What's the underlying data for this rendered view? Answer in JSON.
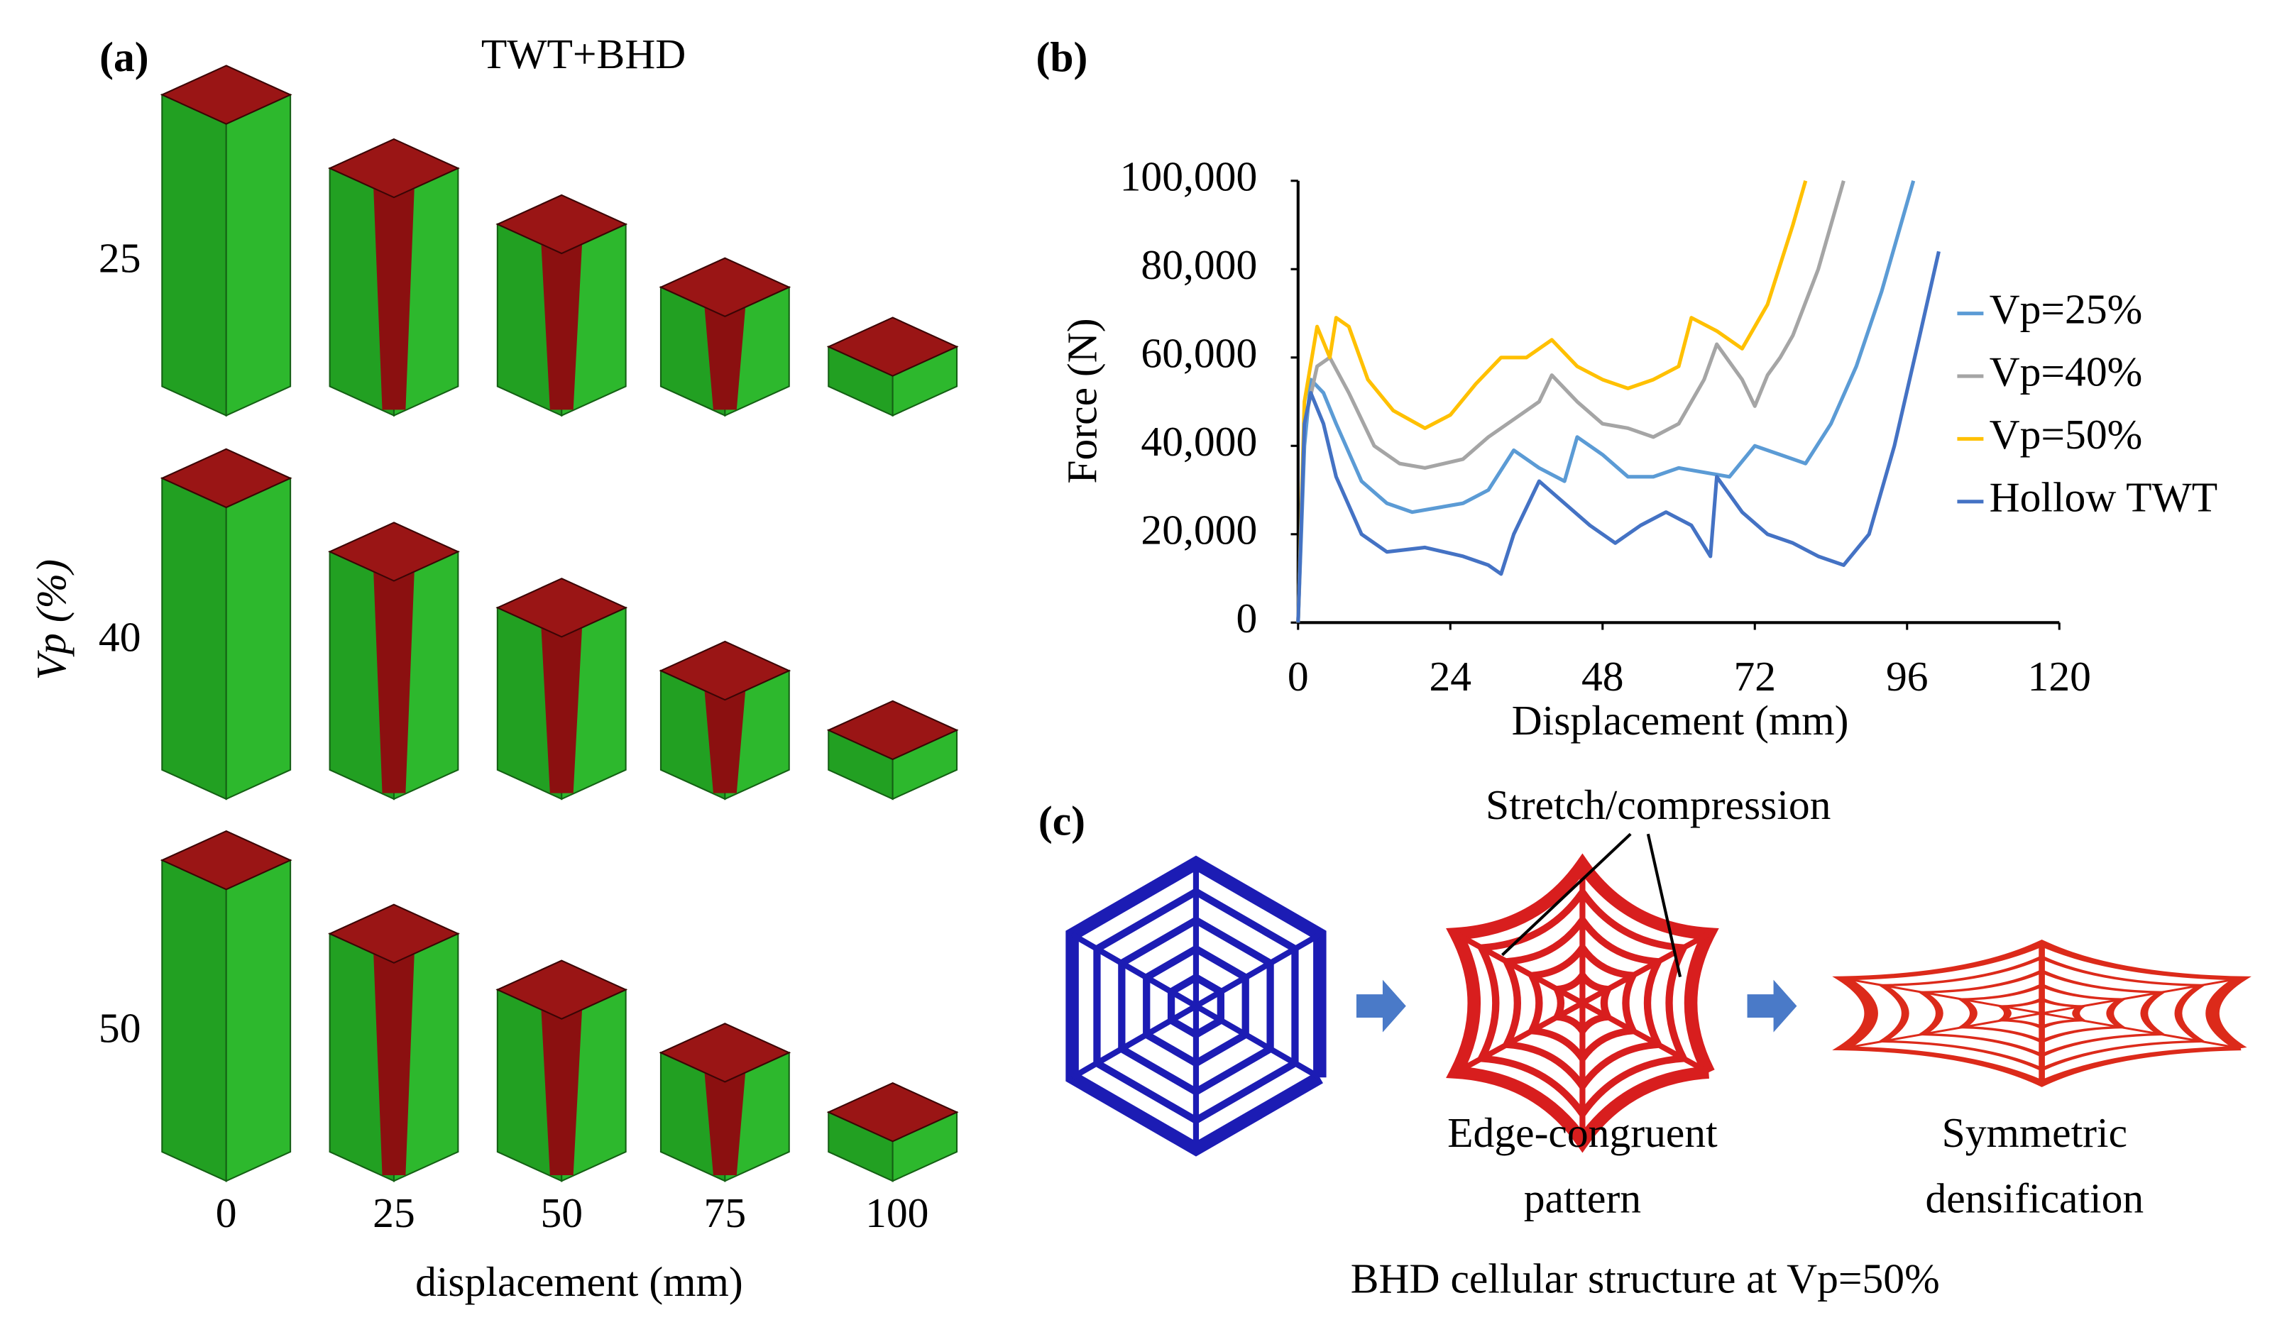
{
  "panel_a": {
    "label": "(a)",
    "title": "TWT+BHD",
    "row_axis_label": "Vp (%)",
    "rows": [
      "25",
      "40",
      "50"
    ],
    "columns": [
      "0",
      "25",
      "50",
      "75",
      "100"
    ],
    "column_axis_label": "displacement (mm)"
  },
  "chart_data": {
    "type": "line",
    "panel_label": "(b)",
    "x_label": "Displacement (mm)",
    "y_label": "Force (N)",
    "xlim": [
      0,
      120
    ],
    "xticks": [
      0,
      24,
      48,
      72,
      96,
      120
    ],
    "ylim": [
      0,
      100000
    ],
    "yticks": [
      0,
      {
        "value": 20000,
        "label": "20,000"
      },
      {
        "value": 40000,
        "label": "40,000"
      },
      {
        "value": 60000,
        "label": "60,000"
      },
      {
        "value": 80000,
        "label": "80,000"
      },
      {
        "value": 100000,
        "label": "100,000"
      }
    ],
    "grid": false,
    "legend": "right",
    "series": [
      {
        "name": "Vp=25%",
        "color": "#5b9bd5",
        "x": [
          0,
          1,
          2,
          4,
          6,
          10,
          14,
          18,
          22,
          26,
          30,
          34,
          38,
          42,
          44,
          48,
          52,
          56,
          60,
          64,
          68,
          72,
          76,
          80,
          84,
          88,
          92,
          95,
          97
        ],
        "values": [
          0,
          40000,
          55000,
          52000,
          45000,
          32000,
          27000,
          25000,
          26000,
          27000,
          30000,
          39000,
          35000,
          32000,
          42000,
          38000,
          33000,
          33000,
          35000,
          34000,
          33000,
          40000,
          38000,
          36000,
          45000,
          58000,
          75000,
          90000,
          100000
        ]
      },
      {
        "name": "Vp=40%",
        "color": "#a5a5a5",
        "x": [
          0,
          1,
          3,
          5,
          8,
          12,
          16,
          20,
          26,
          30,
          34,
          38,
          40,
          44,
          48,
          52,
          56,
          60,
          64,
          66,
          70,
          72,
          74,
          76,
          78,
          82,
          86
        ],
        "values": [
          0,
          45000,
          58000,
          60000,
          52000,
          40000,
          36000,
          35000,
          37000,
          42000,
          46000,
          50000,
          56000,
          50000,
          45000,
          44000,
          42000,
          45000,
          55000,
          63000,
          55000,
          49000,
          56000,
          60000,
          65000,
          80000,
          100000
        ]
      },
      {
        "name": "Vp=50%",
        "color": "#ffc000",
        "x": [
          0,
          1,
          3,
          5,
          6,
          8,
          11,
          15,
          20,
          24,
          28,
          32,
          36,
          40,
          44,
          48,
          52,
          56,
          60,
          62,
          66,
          70,
          74,
          78,
          80
        ],
        "values": [
          0,
          50000,
          67000,
          60000,
          69000,
          67000,
          55000,
          48000,
          44000,
          47000,
          54000,
          60000,
          60000,
          64000,
          58000,
          55000,
          53000,
          55000,
          58000,
          69000,
          66000,
          62000,
          72000,
          90000,
          100000
        ]
      },
      {
        "name": "Hollow TWT",
        "color": "#4472c4",
        "x": [
          0,
          1,
          2,
          4,
          6,
          10,
          14,
          20,
          26,
          30,
          32,
          34,
          38,
          42,
          46,
          50,
          54,
          58,
          62,
          65,
          66,
          70,
          74,
          78,
          82,
          86,
          90,
          94,
          98,
          101
        ],
        "values": [
          0,
          45000,
          52000,
          45000,
          33000,
          20000,
          16000,
          17000,
          15000,
          13000,
          11000,
          20000,
          32000,
          27000,
          22000,
          18000,
          22000,
          25000,
          22000,
          15000,
          33000,
          25000,
          20000,
          18000,
          15000,
          13000,
          20000,
          40000,
          65000,
          84000
        ]
      }
    ]
  },
  "panel_c": {
    "label": "(c)",
    "annotation": "Stretch/compression",
    "middle_caption": [
      "Edge-congruent",
      "pattern"
    ],
    "right_caption": [
      "Symmetric",
      "densification"
    ],
    "caption": "BHD cellular structure at Vp=50%"
  }
}
